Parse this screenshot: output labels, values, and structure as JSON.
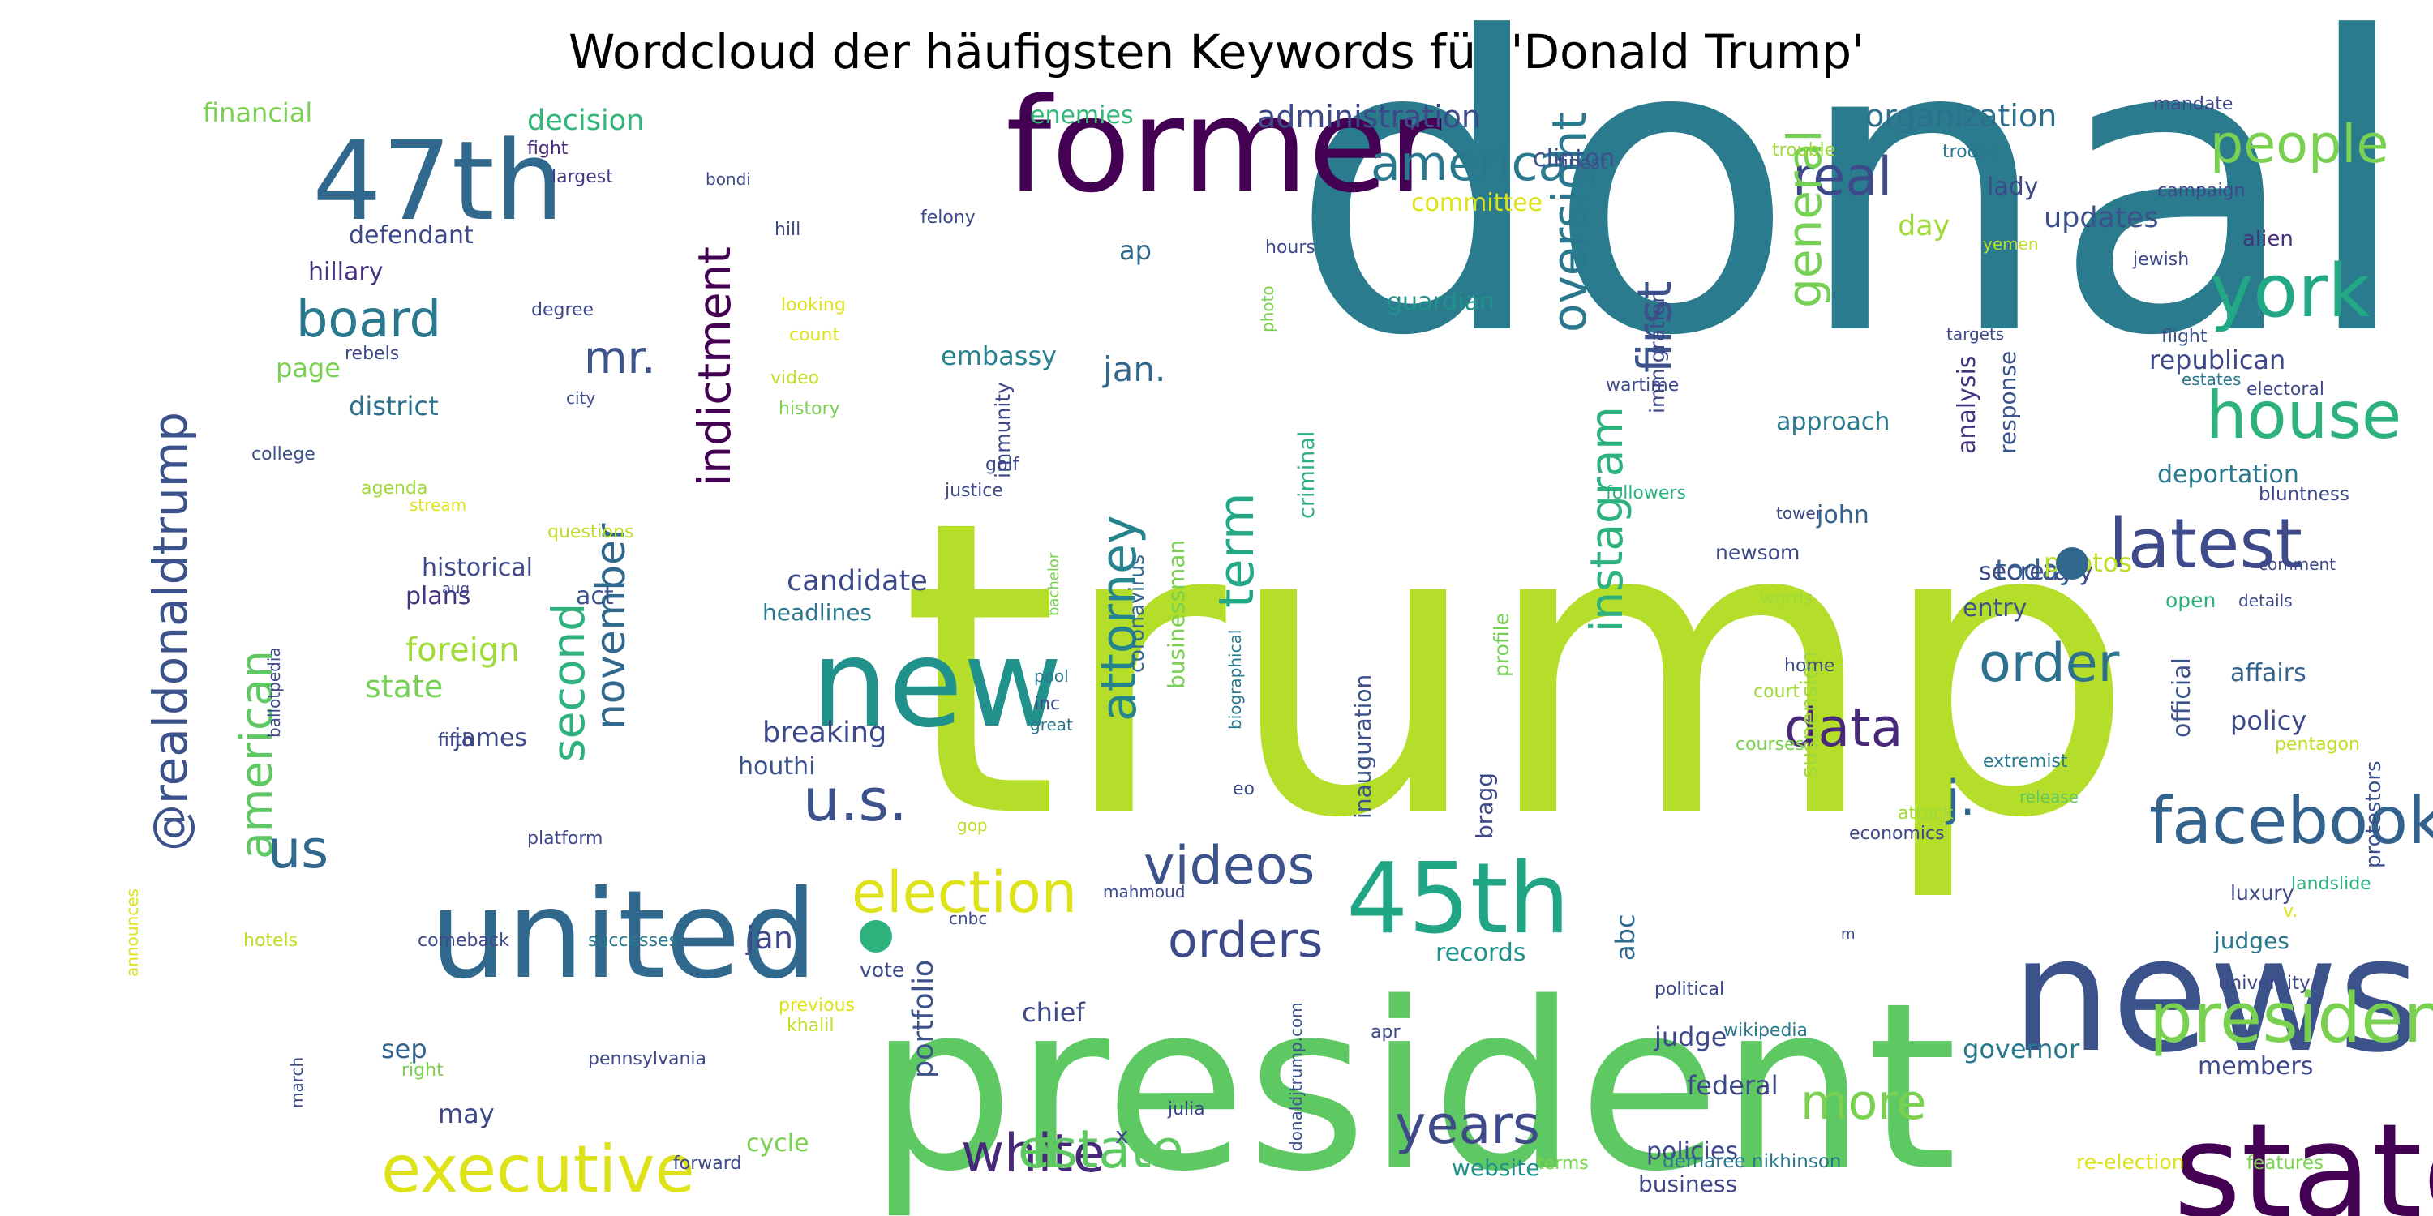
{
  "chart_data": {
    "type": "wordcloud",
    "title": "Wordcloud der häufigsten Keywords für 'Donald Trump'",
    "colormap": "viridis",
    "background": "#ffffff",
    "words": [
      {
        "text": "donald",
        "color": "#2a7b8e"
      },
      {
        "text": "trump",
        "color": "#b5de2b"
      },
      {
        "text": "president",
        "color": "#5ec962"
      },
      {
        "text": "news",
        "color": "#3b528b"
      },
      {
        "text": "states",
        "color": "#440154"
      },
      {
        "text": "former",
        "color": "#440154"
      },
      {
        "text": "new",
        "color": "#21918c"
      },
      {
        "text": "united",
        "color": "#31688e"
      },
      {
        "text": "47th",
        "color": "#31688e"
      },
      {
        "text": "45th",
        "color": "#21a685"
      },
      {
        "text": "j.",
        "color": "#31688e"
      },
      {
        "text": "presidential",
        "color": "#7ad151"
      },
      {
        "text": "facebook",
        "color": "#33638d"
      },
      {
        "text": "executive",
        "color": "#dde318"
      },
      {
        "text": "election",
        "color": "#dde318"
      },
      {
        "text": "white",
        "color": "#482878"
      },
      {
        "text": "estate",
        "color": "#5ec962"
      },
      {
        "text": "years",
        "color": "#3e4a89"
      },
      {
        "text": "videos",
        "color": "#3b528b"
      },
      {
        "text": "orders",
        "color": "#3e4989"
      },
      {
        "text": "latest",
        "color": "#3e4a89"
      },
      {
        "text": "house",
        "color": "#2db27d"
      },
      {
        "text": "york",
        "color": "#22a884"
      },
      {
        "text": "people",
        "color": "#7ad151"
      },
      {
        "text": "real",
        "color": "#3e4989"
      },
      {
        "text": "america",
        "color": "#2a788e"
      },
      {
        "text": "board",
        "color": "#2a788e"
      },
      {
        "text": "us",
        "color": "#31688e"
      },
      {
        "text": "u.s.",
        "color": "#3b528b"
      },
      {
        "text": "order",
        "color": "#2c728e"
      },
      {
        "text": "data",
        "color": "#482878"
      },
      {
        "text": "more",
        "color": "#7ad151"
      },
      {
        "text": "mr.",
        "color": "#3b528b"
      },
      {
        "text": "@realdonaldtrump",
        "color": "#3b528b"
      },
      {
        "text": "american",
        "color": "#5ec962"
      },
      {
        "text": "indictment",
        "color": "#440154"
      },
      {
        "text": "second",
        "color": "#2db27d"
      },
      {
        "text": "november",
        "color": "#31688e"
      },
      {
        "text": "attorney",
        "color": "#25838e"
      },
      {
        "text": "term",
        "color": "#22a884"
      },
      {
        "text": "oversight",
        "color": "#2a788e"
      },
      {
        "text": "first",
        "color": "#3b528b"
      },
      {
        "text": "instagram",
        "color": "#2db27d"
      },
      {
        "text": "general",
        "color": "#75d054"
      },
      {
        "text": "organization",
        "color": "#2d708e"
      },
      {
        "text": "administration",
        "color": "#3e4989"
      },
      {
        "text": "clinton",
        "color": "#3b528b"
      },
      {
        "text": "enemies",
        "color": "#34b679"
      },
      {
        "text": "committee",
        "color": "#dde318"
      },
      {
        "text": "decision",
        "color": "#33b67a"
      },
      {
        "text": "financial",
        "color": "#7ad151"
      },
      {
        "text": "fight",
        "color": "#482878"
      },
      {
        "text": "largest",
        "color": "#443983"
      },
      {
        "text": "defendant",
        "color": "#3e4989"
      },
      {
        "text": "hillary",
        "color": "#46337e"
      },
      {
        "text": "updates",
        "color": "#3b528b"
      },
      {
        "text": "lady",
        "color": "#3e4989"
      },
      {
        "text": "day",
        "color": "#a0da39"
      },
      {
        "text": "guardian",
        "color": "#21918c"
      },
      {
        "text": "ap",
        "color": "#31688e"
      },
      {
        "text": "jan.",
        "color": "#31688e"
      },
      {
        "text": "embassy",
        "color": "#26828e"
      },
      {
        "text": "page",
        "color": "#7ad151"
      },
      {
        "text": "district",
        "color": "#2c728e"
      },
      {
        "text": "foreign",
        "color": "#a0da39"
      },
      {
        "text": "state",
        "color": "#75d054"
      },
      {
        "text": "historical",
        "color": "#3e4989"
      },
      {
        "text": "plans",
        "color": "#46337e"
      },
      {
        "text": "act",
        "color": "#3b528b"
      },
      {
        "text": "candidate",
        "color": "#3e4989"
      },
      {
        "text": "headlines",
        "color": "#2a788e"
      },
      {
        "text": "breaking",
        "color": "#3e4989"
      },
      {
        "text": "houthi",
        "color": "#3b528b"
      },
      {
        "text": "james",
        "color": "#3e4989"
      },
      {
        "text": "today",
        "color": "#33638d"
      },
      {
        "text": "secretary",
        "color": "#3e4989"
      },
      {
        "text": "entry",
        "color": "#3b528b"
      },
      {
        "text": "approach",
        "color": "#2a788e"
      },
      {
        "text": "john",
        "color": "#33638d"
      },
      {
        "text": "newsom",
        "color": "#3e4989"
      },
      {
        "text": "republican",
        "color": "#3e4989"
      },
      {
        "text": "deportation",
        "color": "#2a788e"
      },
      {
        "text": "photos",
        "color": "#bddf26"
      },
      {
        "text": "open",
        "color": "#2db27d"
      },
      {
        "text": "affairs",
        "color": "#33638d"
      },
      {
        "text": "policy",
        "color": "#3e4989"
      },
      {
        "text": "luxury",
        "color": "#3e4989"
      },
      {
        "text": "judges",
        "color": "#2a788e"
      },
      {
        "text": "university",
        "color": "#3e4989"
      },
      {
        "text": "governor",
        "color": "#2a788e"
      },
      {
        "text": "members",
        "color": "#3e4989"
      },
      {
        "text": "judge",
        "color": "#3e4989"
      },
      {
        "text": "federal",
        "color": "#3e4989"
      },
      {
        "text": "records",
        "color": "#21918c"
      },
      {
        "text": "chief",
        "color": "#3e4989"
      },
      {
        "text": "vote",
        "color": "#3e4989"
      },
      {
        "text": "jan",
        "color": "#3e4989"
      },
      {
        "text": "sep",
        "color": "#33638d"
      },
      {
        "text": "may",
        "color": "#3e4989"
      },
      {
        "text": "cycle",
        "color": "#7ad151"
      },
      {
        "text": "policies",
        "color": "#3e4989"
      },
      {
        "text": "business",
        "color": "#3e4989"
      },
      {
        "text": "website",
        "color": "#21918c"
      },
      {
        "text": "abc",
        "color": "#31688e"
      },
      {
        "text": "portfolio",
        "color": "#3b528b"
      },
      {
        "text": "businessman",
        "color": "#7ad151"
      },
      {
        "text": "coronavirus",
        "color": "#31688e"
      },
      {
        "text": "immunity",
        "color": "#3e4989"
      },
      {
        "text": "criminal",
        "color": "#2db27d"
      },
      {
        "text": "inauguration",
        "color": "#3b528b"
      },
      {
        "text": "bragg",
        "color": "#3e4989"
      },
      {
        "text": "profile",
        "color": "#75d054"
      },
      {
        "text": "suspension",
        "color": "#a0da39"
      },
      {
        "text": "analysis",
        "color": "#46337e"
      },
      {
        "text": "response",
        "color": "#3b528b"
      },
      {
        "text": "immigration",
        "color": "#3e4989"
      },
      {
        "text": "official",
        "color": "#3b528b"
      },
      {
        "text": "felony",
        "color": "#3e4989"
      },
      {
        "text": "bondi",
        "color": "#3e4989"
      },
      {
        "text": "hill",
        "color": "#3e4989"
      },
      {
        "text": "looking",
        "color": "#dde318"
      },
      {
        "text": "count",
        "color": "#dde318"
      },
      {
        "text": "video",
        "color": "#bddf26"
      },
      {
        "text": "history",
        "color": "#7ad151"
      },
      {
        "text": "finest",
        "color": "#3b528b"
      },
      {
        "text": "trouble",
        "color": "#a0da39"
      },
      {
        "text": "troops",
        "color": "#2a788e"
      },
      {
        "text": "mandate",
        "color": "#3e4989"
      },
      {
        "text": "campaign",
        "color": "#3e4989"
      },
      {
        "text": "alien",
        "color": "#46337e"
      },
      {
        "text": "jewish",
        "color": "#3e4989"
      },
      {
        "text": "yemen",
        "color": "#bddf26"
      },
      {
        "text": "targets",
        "color": "#3e4989"
      },
      {
        "text": "flight",
        "color": "#3b528b"
      },
      {
        "text": "estates",
        "color": "#2a788e"
      },
      {
        "text": "electoral",
        "color": "#3e4989"
      },
      {
        "text": "wartime",
        "color": "#3e4989"
      },
      {
        "text": "hours",
        "color": "#3e4989"
      },
      {
        "text": "photo",
        "color": "#7ad151"
      },
      {
        "text": "degree",
        "color": "#3e4989"
      },
      {
        "text": "rebels",
        "color": "#3e4989"
      },
      {
        "text": "city",
        "color": "#3e4989"
      },
      {
        "text": "college",
        "color": "#3b528b"
      },
      {
        "text": "agenda",
        "color": "#a0da39"
      },
      {
        "text": "stream",
        "color": "#dde318"
      },
      {
        "text": "questions",
        "color": "#bddf26"
      },
      {
        "text": "aug",
        "color": "#3e4989"
      },
      {
        "text": "justice",
        "color": "#3e4989"
      },
      {
        "text": "golf",
        "color": "#3e4989"
      },
      {
        "text": "followers",
        "color": "#2db27d"
      },
      {
        "text": "tower",
        "color": "#3e4989"
      },
      {
        "text": "bluntness",
        "color": "#3e4989"
      },
      {
        "text": "comment",
        "color": "#3e4989"
      },
      {
        "text": "details",
        "color": "#3e4989"
      },
      {
        "text": "words",
        "color": "#a0da39"
      },
      {
        "text": "home",
        "color": "#3e4989"
      },
      {
        "text": "court",
        "color": "#a0da39"
      },
      {
        "text": "courses",
        "color": "#7ad151"
      },
      {
        "text": "extremist",
        "color": "#2a788e"
      },
      {
        "text": "release",
        "color": "#5ec962"
      },
      {
        "text": "pentagon",
        "color": "#bddf26"
      },
      {
        "text": "bachelor",
        "color": "#7ad151"
      },
      {
        "text": "pool",
        "color": "#2a788e"
      },
      {
        "text": "inc",
        "color": "#3e4989"
      },
      {
        "text": "great",
        "color": "#2a788e"
      },
      {
        "text": "biographical",
        "color": "#2a788e"
      },
      {
        "text": "ballotpedia",
        "color": "#3e4989"
      },
      {
        "text": "fifth",
        "color": "#3e4989"
      },
      {
        "text": "eo",
        "color": "#3e4989"
      },
      {
        "text": "platform",
        "color": "#3e4989"
      },
      {
        "text": "gop",
        "color": "#bddf26"
      },
      {
        "text": "attack",
        "color": "#a0da39"
      },
      {
        "text": "economics",
        "color": "#3e4989"
      },
      {
        "text": "landslide",
        "color": "#2db27d"
      },
      {
        "text": "protestors",
        "color": "#3b528b"
      },
      {
        "text": "v.",
        "color": "#dde318"
      },
      {
        "text": "announces",
        "color": "#dde318"
      },
      {
        "text": "hotels",
        "color": "#bddf26"
      },
      {
        "text": "comeback",
        "color": "#3e4989"
      },
      {
        "text": "successes",
        "color": "#2a788e"
      },
      {
        "text": "mahmoud",
        "color": "#3e4989"
      },
      {
        "text": "cnbc",
        "color": "#3e4989"
      },
      {
        "text": "m",
        "color": "#3e4989"
      },
      {
        "text": "political",
        "color": "#3e4989"
      },
      {
        "text": "previous",
        "color": "#dde318"
      },
      {
        "text": "khalil",
        "color": "#bddf26"
      },
      {
        "text": "apr",
        "color": "#3e4989"
      },
      {
        "text": "wikipedia",
        "color": "#2a788e"
      },
      {
        "text": "pennsylvania",
        "color": "#3e4989"
      },
      {
        "text": "right",
        "color": "#7ad151"
      },
      {
        "text": "march",
        "color": "#3e4989"
      },
      {
        "text": "julia",
        "color": "#3e4989"
      },
      {
        "text": "x",
        "color": "#3e4989"
      },
      {
        "text": "donaldjtrump.com",
        "color": "#3b528b"
      },
      {
        "text": "forward",
        "color": "#3e4989"
      },
      {
        "text": "terms",
        "color": "#7ad151"
      },
      {
        "text": "demaree",
        "color": "#2a788e"
      },
      {
        "text": "nikhinson",
        "color": "#2a788e"
      },
      {
        "text": "re-election",
        "color": "#dde318"
      },
      {
        "text": "features",
        "color": "#7ad151"
      }
    ],
    "dots": [
      {
        "color": "#2db27d"
      },
      {
        "color": "#31688e"
      }
    ]
  }
}
